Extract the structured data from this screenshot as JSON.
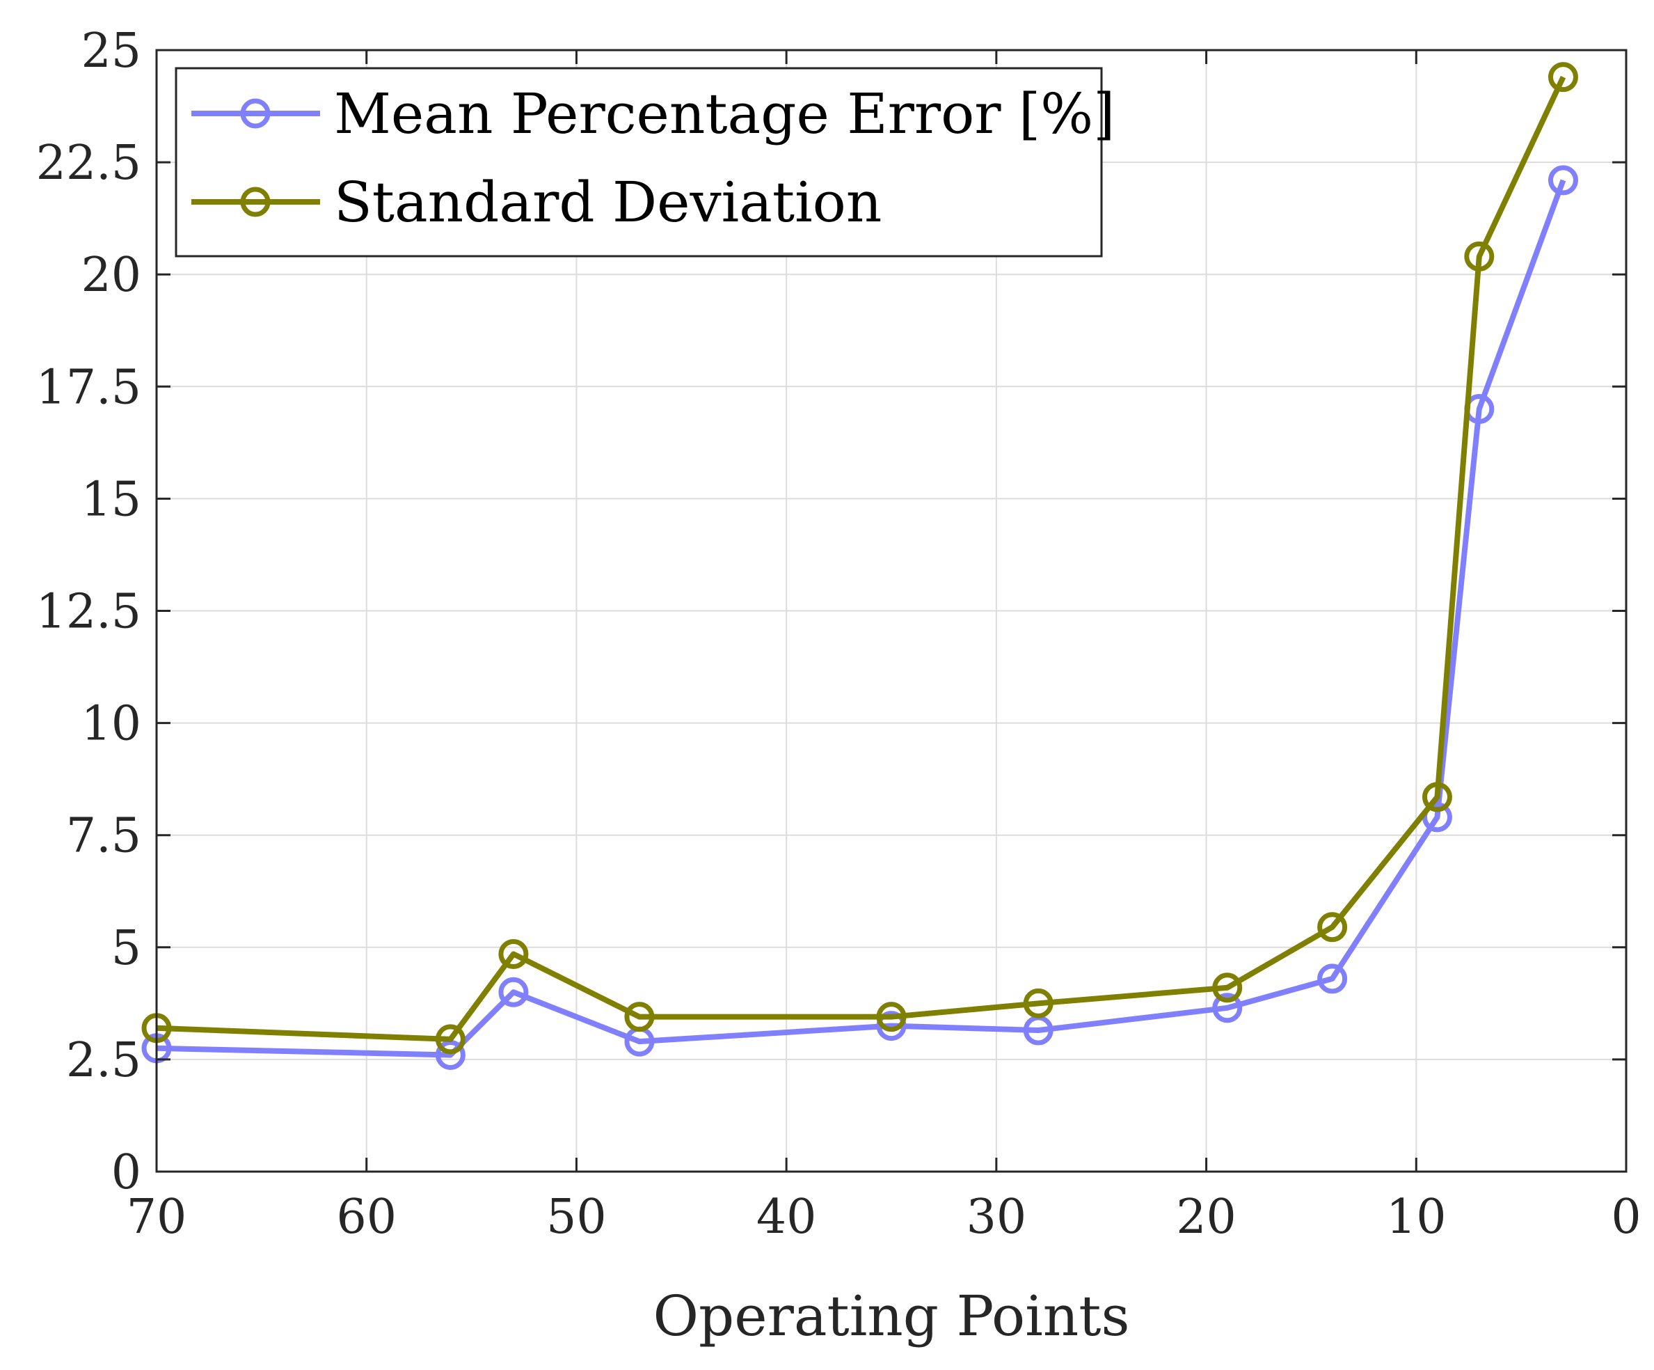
{
  "chart_data": {
    "type": "line",
    "title": "",
    "xlabel": "Operating Points",
    "ylabel": "",
    "xlim": [
      70,
      0
    ],
    "ylim": [
      0,
      25
    ],
    "x_reversed": true,
    "xticks": [
      70,
      60,
      50,
      40,
      30,
      20,
      10,
      0
    ],
    "yticks": [
      0,
      2.5,
      5,
      7.5,
      10,
      12.5,
      15,
      17.5,
      20,
      22.5,
      25
    ],
    "xtick_labels": [
      "70",
      "60",
      "50",
      "40",
      "30",
      "20",
      "10",
      "0"
    ],
    "ytick_labels": [
      "0",
      "2.5",
      "5",
      "7.5",
      "10",
      "12.5",
      "15",
      "17.5",
      "20",
      "22.5",
      "25"
    ],
    "grid": true,
    "legend_position": "top-left",
    "series": [
      {
        "name": "Mean Percentage Error [%]",
        "color": "#8080ff",
        "marker": "circle",
        "x": [
          70,
          56,
          53,
          47,
          35,
          28,
          19,
          14,
          9,
          7,
          3
        ],
        "y": [
          2.75,
          2.6,
          4.0,
          2.9,
          3.25,
          3.15,
          3.65,
          4.3,
          7.9,
          17.0,
          22.1
        ]
      },
      {
        "name": "Standard Deviation",
        "color": "#808000",
        "marker": "circle",
        "x": [
          70,
          56,
          53,
          47,
          35,
          28,
          19,
          14,
          9,
          7,
          3
        ],
        "y": [
          3.2,
          2.95,
          4.85,
          3.45,
          3.45,
          3.75,
          4.1,
          5.45,
          8.35,
          20.4,
          24.4
        ]
      }
    ]
  }
}
